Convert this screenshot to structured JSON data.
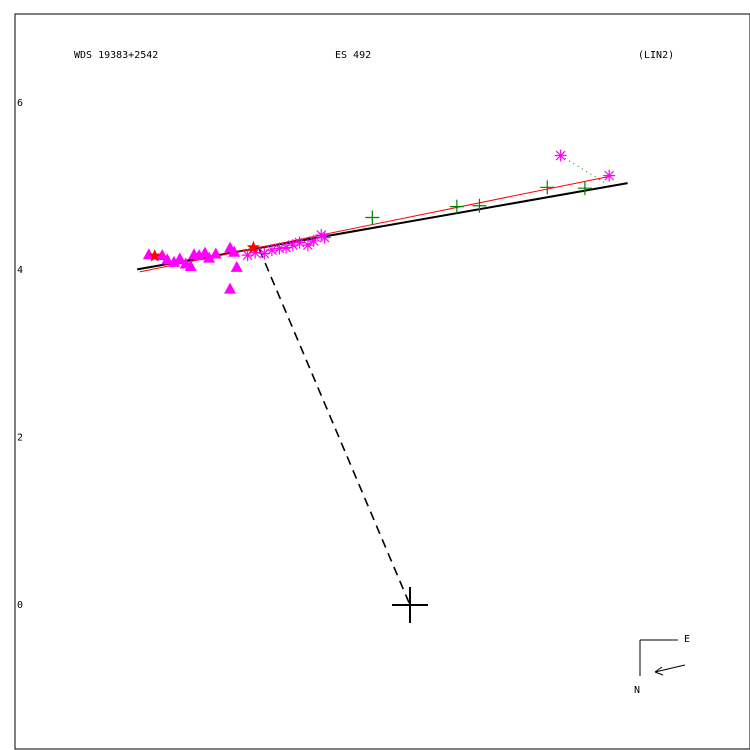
{
  "chart_data": {
    "type": "scatter",
    "header": {
      "left": "WDS 19383+2542",
      "center": "ES  492",
      "right": "(LIN2)"
    },
    "y_ticks": [
      {
        "value": 6,
        "label": "6"
      },
      {
        "value": 4,
        "label": "4"
      },
      {
        "value": 2,
        "label": "2"
      },
      {
        "value": 0,
        "label": "0"
      }
    ],
    "compass": {
      "east_label": "E",
      "north_label": "N"
    },
    "primary": [
      0,
      0
    ],
    "fit_line": {
      "x1": -3.26,
      "y1": 4.01,
      "x2": 2.6,
      "y2": 5.04
    },
    "trend_line": {
      "x1": -3.23,
      "y1": 3.98,
      "x2": 2.38,
      "y2": 5.12
    },
    "separation_line": {
      "x1": -1.8,
      "y1": 4.25,
      "x2": 0.0,
      "y2": 0.0
    },
    "outlier_link": {
      "x1": 1.8,
      "y1": 5.37,
      "x2": 2.32,
      "y2": 5.05
    },
    "colors": {
      "triangle": "#ff00ff",
      "star": "#ff00ff",
      "cross": "#008000",
      "filled_star": "#ff0000",
      "fit": "#000000",
      "trend": "#ff0000"
    },
    "series": [
      {
        "marker": "triangle",
        "points": [
          [
            -3.12,
            4.19
          ],
          [
            -2.96,
            4.18
          ],
          [
            -2.9,
            4.13
          ],
          [
            -2.82,
            4.1
          ],
          [
            -2.75,
            4.14
          ],
          [
            -2.68,
            4.08
          ],
          [
            -2.62,
            4.05
          ],
          [
            -2.58,
            4.19
          ],
          [
            -2.52,
            4.18
          ],
          [
            -2.45,
            4.21
          ],
          [
            -2.4,
            4.15
          ],
          [
            -2.32,
            4.2
          ],
          [
            -2.15,
            4.27
          ],
          [
            -2.1,
            4.22
          ],
          [
            -2.07,
            4.04
          ],
          [
            -2.15,
            3.78
          ]
        ]
      },
      {
        "marker": "asterisk",
        "points": [
          [
            -1.94,
            4.18
          ],
          [
            -1.85,
            4.21
          ],
          [
            -1.74,
            4.2
          ],
          [
            -1.65,
            4.24
          ],
          [
            -1.56,
            4.26
          ],
          [
            -1.48,
            4.27
          ],
          [
            -1.4,
            4.3
          ],
          [
            -1.32,
            4.33
          ],
          [
            -1.22,
            4.3
          ],
          [
            -1.15,
            4.35
          ],
          [
            -1.06,
            4.42
          ],
          [
            -1.02,
            4.39
          ],
          [
            1.8,
            5.37
          ],
          [
            2.38,
            5.13
          ]
        ]
      },
      {
        "marker": "cross",
        "points": [
          [
            -0.45,
            4.63
          ],
          [
            0.56,
            4.76
          ],
          [
            0.83,
            4.77
          ],
          [
            1.64,
            4.99
          ],
          [
            2.09,
            4.98
          ]
        ]
      },
      {
        "marker": "filled-star",
        "points": [
          [
            -3.05,
            4.17
          ],
          [
            -1.87,
            4.27
          ]
        ]
      }
    ]
  }
}
